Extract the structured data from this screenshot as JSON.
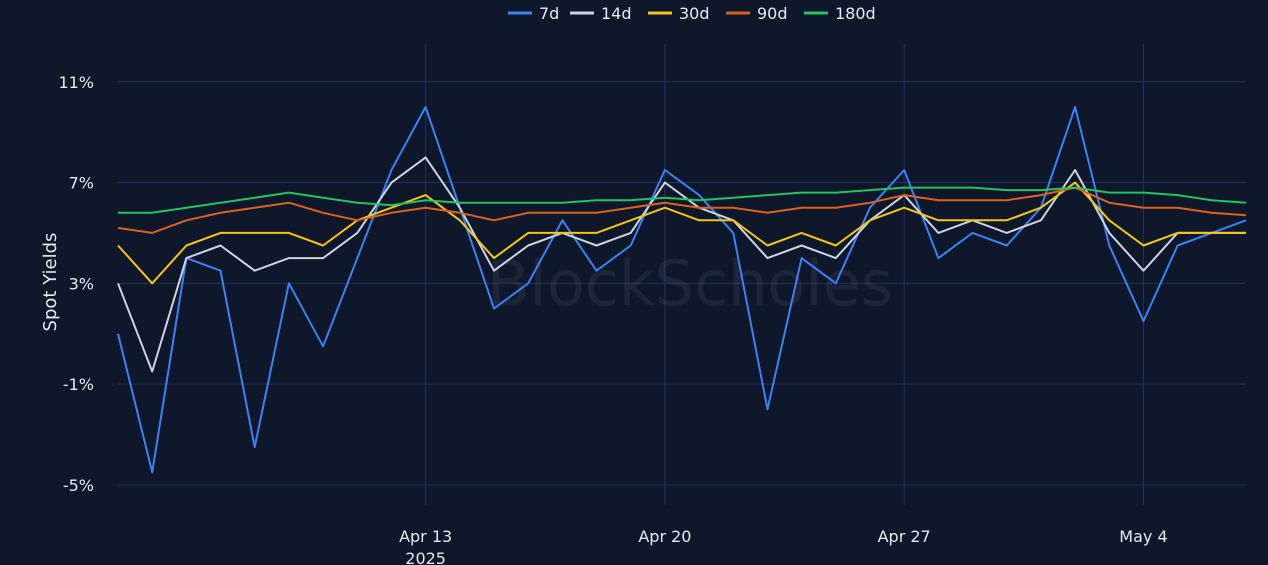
{
  "chart_data": {
    "type": "line",
    "ylabel": "Spot Yields",
    "watermark": "BlockScholes",
    "y_unit": "%",
    "ylim": [
      -5.8,
      12.5
    ],
    "y_ticks": [
      {
        "value": 11,
        "label": "11%"
      },
      {
        "value": 7,
        "label": "7%"
      },
      {
        "value": 3,
        "label": "3%"
      },
      {
        "value": -1,
        "label": "-1%"
      },
      {
        "value": -5,
        "label": "-5%"
      }
    ],
    "xlim": [
      "2025-04-04",
      "2025-05-07"
    ],
    "x_ticks": [
      {
        "value": "2025-04-13",
        "label": "Apr 13",
        "sublabel": "2025"
      },
      {
        "value": "2025-04-20",
        "label": "Apr 20",
        "sublabel": ""
      },
      {
        "value": "2025-04-27",
        "label": "Apr 27",
        "sublabel": ""
      },
      {
        "value": "2025-05-04",
        "label": "May 4",
        "sublabel": ""
      }
    ],
    "grid": true,
    "legend_position": "top-center",
    "series": [
      {
        "name": "7d",
        "color": "#3b82f6",
        "points": [
          [
            "2025-04-04",
            1.0
          ],
          [
            "2025-04-05",
            -4.5
          ],
          [
            "2025-04-06",
            4.0
          ],
          [
            "2025-04-07",
            3.5
          ],
          [
            "2025-04-08",
            -3.5
          ],
          [
            "2025-04-09",
            3.0
          ],
          [
            "2025-04-10",
            0.5
          ],
          [
            "2025-04-11",
            4.0
          ],
          [
            "2025-04-12",
            7.5
          ],
          [
            "2025-04-13",
            10.0
          ],
          [
            "2025-04-14",
            6.0
          ],
          [
            "2025-04-15",
            2.0
          ],
          [
            "2025-04-16",
            3.0
          ],
          [
            "2025-04-17",
            5.5
          ],
          [
            "2025-04-18",
            3.5
          ],
          [
            "2025-04-19",
            4.5
          ],
          [
            "2025-04-20",
            7.5
          ],
          [
            "2025-04-21",
            6.5
          ],
          [
            "2025-04-22",
            5.0
          ],
          [
            "2025-04-23",
            -2.0
          ],
          [
            "2025-04-24",
            4.0
          ],
          [
            "2025-04-25",
            3.0
          ],
          [
            "2025-04-26",
            6.0
          ],
          [
            "2025-04-27",
            7.5
          ],
          [
            "2025-04-28",
            4.0
          ],
          [
            "2025-04-29",
            5.0
          ],
          [
            "2025-04-30",
            4.5
          ],
          [
            "2025-05-01",
            6.0
          ],
          [
            "2025-05-02",
            10.0
          ],
          [
            "2025-05-03",
            4.5
          ],
          [
            "2025-05-04",
            1.5
          ],
          [
            "2025-05-05",
            4.5
          ],
          [
            "2025-05-06",
            5.0
          ],
          [
            "2025-05-07",
            5.5
          ]
        ]
      },
      {
        "name": "14d",
        "color": "#cbd5e1",
        "points": [
          [
            "2025-04-04",
            3.0
          ],
          [
            "2025-04-05",
            -0.5
          ],
          [
            "2025-04-06",
            4.0
          ],
          [
            "2025-04-07",
            4.5
          ],
          [
            "2025-04-08",
            3.5
          ],
          [
            "2025-04-09",
            4.0
          ],
          [
            "2025-04-10",
            4.0
          ],
          [
            "2025-04-11",
            5.0
          ],
          [
            "2025-04-12",
            7.0
          ],
          [
            "2025-04-13",
            8.0
          ],
          [
            "2025-04-14",
            6.0
          ],
          [
            "2025-04-15",
            3.5
          ],
          [
            "2025-04-16",
            4.5
          ],
          [
            "2025-04-17",
            5.0
          ],
          [
            "2025-04-18",
            4.5
          ],
          [
            "2025-04-19",
            5.0
          ],
          [
            "2025-04-20",
            7.0
          ],
          [
            "2025-04-21",
            6.0
          ],
          [
            "2025-04-22",
            5.5
          ],
          [
            "2025-04-23",
            4.0
          ],
          [
            "2025-04-24",
            4.5
          ],
          [
            "2025-04-25",
            4.0
          ],
          [
            "2025-04-26",
            5.5
          ],
          [
            "2025-04-27",
            6.5
          ],
          [
            "2025-04-28",
            5.0
          ],
          [
            "2025-04-29",
            5.5
          ],
          [
            "2025-04-30",
            5.0
          ],
          [
            "2025-05-01",
            5.5
          ],
          [
            "2025-05-02",
            7.5
          ],
          [
            "2025-05-03",
            5.0
          ],
          [
            "2025-05-04",
            3.5
          ],
          [
            "2025-05-05",
            5.0
          ],
          [
            "2025-05-06",
            5.0
          ],
          [
            "2025-05-07",
            5.0
          ]
        ]
      },
      {
        "name": "30d",
        "color": "#f5c518",
        "points": [
          [
            "2025-04-04",
            4.5
          ],
          [
            "2025-04-05",
            3.0
          ],
          [
            "2025-04-06",
            4.5
          ],
          [
            "2025-04-07",
            5.0
          ],
          [
            "2025-04-08",
            5.0
          ],
          [
            "2025-04-09",
            5.0
          ],
          [
            "2025-04-10",
            4.5
          ],
          [
            "2025-04-11",
            5.5
          ],
          [
            "2025-04-12",
            6.0
          ],
          [
            "2025-04-13",
            6.5
          ],
          [
            "2025-04-14",
            5.5
          ],
          [
            "2025-04-15",
            4.0
          ],
          [
            "2025-04-16",
            5.0
          ],
          [
            "2025-04-17",
            5.0
          ],
          [
            "2025-04-18",
            5.0
          ],
          [
            "2025-04-19",
            5.5
          ],
          [
            "2025-04-20",
            6.0
          ],
          [
            "2025-04-21",
            5.5
          ],
          [
            "2025-04-22",
            5.5
          ],
          [
            "2025-04-23",
            4.5
          ],
          [
            "2025-04-24",
            5.0
          ],
          [
            "2025-04-25",
            4.5
          ],
          [
            "2025-04-26",
            5.5
          ],
          [
            "2025-04-27",
            6.0
          ],
          [
            "2025-04-28",
            5.5
          ],
          [
            "2025-04-29",
            5.5
          ],
          [
            "2025-04-30",
            5.5
          ],
          [
            "2025-05-01",
            6.0
          ],
          [
            "2025-05-02",
            7.0
          ],
          [
            "2025-05-03",
            5.5
          ],
          [
            "2025-05-04",
            4.5
          ],
          [
            "2025-05-05",
            5.0
          ],
          [
            "2025-05-06",
            5.0
          ],
          [
            "2025-05-07",
            5.0
          ]
        ]
      },
      {
        "name": "90d",
        "color": "#d9631e",
        "points": [
          [
            "2025-04-04",
            5.2
          ],
          [
            "2025-04-05",
            5.0
          ],
          [
            "2025-04-06",
            5.5
          ],
          [
            "2025-04-07",
            5.8
          ],
          [
            "2025-04-08",
            6.0
          ],
          [
            "2025-04-09",
            6.2
          ],
          [
            "2025-04-10",
            5.8
          ],
          [
            "2025-04-11",
            5.5
          ],
          [
            "2025-04-12",
            5.8
          ],
          [
            "2025-04-13",
            6.0
          ],
          [
            "2025-04-14",
            5.8
          ],
          [
            "2025-04-15",
            5.5
          ],
          [
            "2025-04-16",
            5.8
          ],
          [
            "2025-04-17",
            5.8
          ],
          [
            "2025-04-18",
            5.8
          ],
          [
            "2025-04-19",
            6.0
          ],
          [
            "2025-04-20",
            6.2
          ],
          [
            "2025-04-21",
            6.0
          ],
          [
            "2025-04-22",
            6.0
          ],
          [
            "2025-04-23",
            5.8
          ],
          [
            "2025-04-24",
            6.0
          ],
          [
            "2025-04-25",
            6.0
          ],
          [
            "2025-04-26",
            6.2
          ],
          [
            "2025-04-27",
            6.5
          ],
          [
            "2025-04-28",
            6.3
          ],
          [
            "2025-04-29",
            6.3
          ],
          [
            "2025-04-30",
            6.3
          ],
          [
            "2025-05-01",
            6.5
          ],
          [
            "2025-05-02",
            6.8
          ],
          [
            "2025-05-03",
            6.2
          ],
          [
            "2025-05-04",
            6.0
          ],
          [
            "2025-05-05",
            6.0
          ],
          [
            "2025-05-06",
            5.8
          ],
          [
            "2025-05-07",
            5.7
          ]
        ]
      },
      {
        "name": "180d",
        "color": "#22c55e",
        "points": [
          [
            "2025-04-04",
            5.8
          ],
          [
            "2025-04-05",
            5.8
          ],
          [
            "2025-04-06",
            6.0
          ],
          [
            "2025-04-07",
            6.2
          ],
          [
            "2025-04-08",
            6.4
          ],
          [
            "2025-04-09",
            6.6
          ],
          [
            "2025-04-10",
            6.4
          ],
          [
            "2025-04-11",
            6.2
          ],
          [
            "2025-04-12",
            6.1
          ],
          [
            "2025-04-13",
            6.3
          ],
          [
            "2025-04-14",
            6.2
          ],
          [
            "2025-04-15",
            6.2
          ],
          [
            "2025-04-16",
            6.2
          ],
          [
            "2025-04-17",
            6.2
          ],
          [
            "2025-04-18",
            6.3
          ],
          [
            "2025-04-19",
            6.3
          ],
          [
            "2025-04-20",
            6.4
          ],
          [
            "2025-04-21",
            6.3
          ],
          [
            "2025-04-22",
            6.4
          ],
          [
            "2025-04-23",
            6.5
          ],
          [
            "2025-04-24",
            6.6
          ],
          [
            "2025-04-25",
            6.6
          ],
          [
            "2025-04-26",
            6.7
          ],
          [
            "2025-04-27",
            6.8
          ],
          [
            "2025-04-28",
            6.8
          ],
          [
            "2025-04-29",
            6.8
          ],
          [
            "2025-04-30",
            6.7
          ],
          [
            "2025-05-01",
            6.7
          ],
          [
            "2025-05-02",
            6.8
          ],
          [
            "2025-05-03",
            6.6
          ],
          [
            "2025-05-04",
            6.6
          ],
          [
            "2025-05-05",
            6.5
          ],
          [
            "2025-05-06",
            6.3
          ],
          [
            "2025-05-07",
            6.2
          ]
        ]
      }
    ]
  }
}
